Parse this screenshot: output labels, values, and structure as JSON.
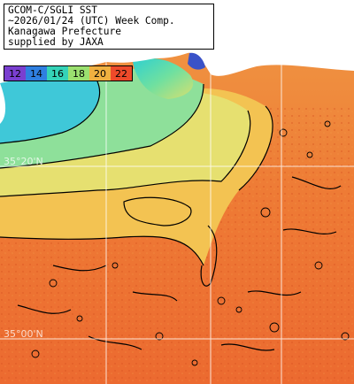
{
  "title": {
    "line1": "GCOM-C/SGLI SST",
    "line2": "~2026/01/24 (UTC) Week Comp.",
    "line3": "Kanagawa Prefecture",
    "line4": "supplied by JAXA"
  },
  "colorbar": {
    "unit_hint": "SST",
    "segments": [
      {
        "label": "12",
        "color": "#7a3fd0"
      },
      {
        "label": "14",
        "color": "#2f7fe0"
      },
      {
        "label": "16",
        "color": "#35d3b8"
      },
      {
        "label": "18",
        "color": "#9be070"
      },
      {
        "label": "20",
        "color": "#f0b040"
      },
      {
        "label": "22",
        "color": "#ee4a2a"
      }
    ]
  },
  "grid_labels": {
    "lat_35_20": "35°20'N",
    "lat_35_00": "35°00'N"
  },
  "colors": {
    "land": "#ffffff",
    "grid": "#ffffff",
    "contour": "#000000",
    "sst_cold": "#35c8d0",
    "sst_cool": "#80e0a0",
    "sst_mid": "#e0e070",
    "sst_warm": "#f0a040",
    "sst_hot": "#ec6a30"
  }
}
